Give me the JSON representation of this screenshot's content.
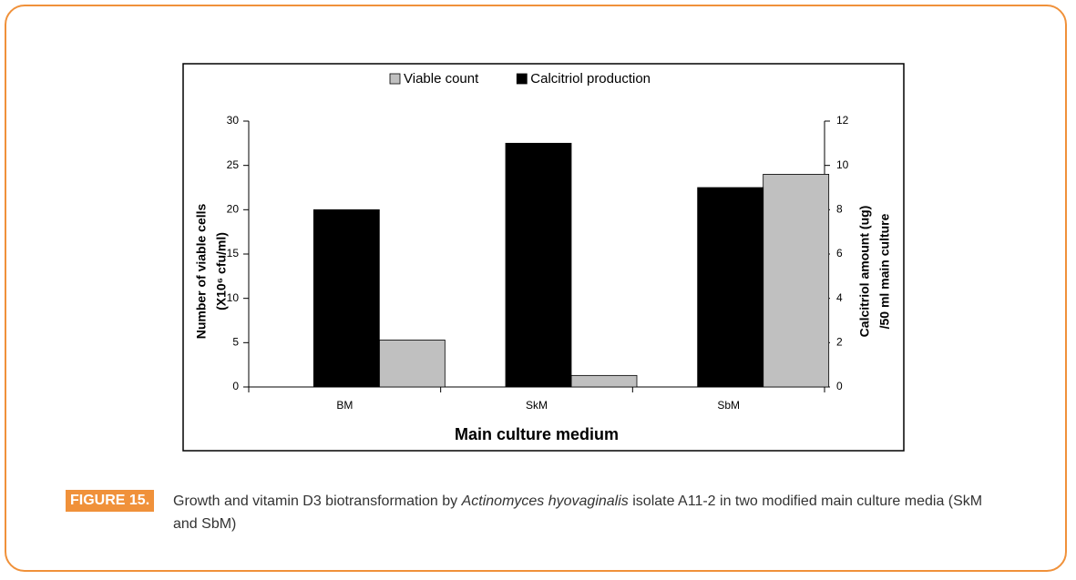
{
  "chart_data": {
    "type": "bar",
    "xlabel": "Main culture medium",
    "ylabel": [
      "Number of viable cells",
      "(X10⁶ cfu/ml)"
    ],
    "y2label": [
      "Calcitriol amount (ug)",
      "/50 ml main culture"
    ],
    "categories": [
      "BM",
      "SkM",
      "SbM"
    ],
    "series": [
      {
        "name": "Viable count",
        "color": "#c0c0c0",
        "values": [
          5.3,
          1.3,
          24
        ]
      },
      {
        "name": "Calcitriol production",
        "color": "#000000",
        "axis": "y2",
        "values": [
          8,
          11,
          9
        ]
      }
    ],
    "ylim": [
      0,
      30
    ],
    "yticks": [
      0,
      5,
      10,
      15,
      20,
      25,
      30
    ],
    "y2lim": [
      0,
      12
    ],
    "y2ticks": [
      0,
      2,
      4,
      6,
      8,
      10,
      12
    ],
    "grid": false,
    "legend": "top"
  },
  "caption": {
    "label": "FIGURE 15.",
    "before": "Growth and vitamin D3 biotransformation by ",
    "italic": "Actinomyces hyovaginalis",
    "after": " isolate A11-2 in two modified main culture media (SkM and SbM)"
  }
}
